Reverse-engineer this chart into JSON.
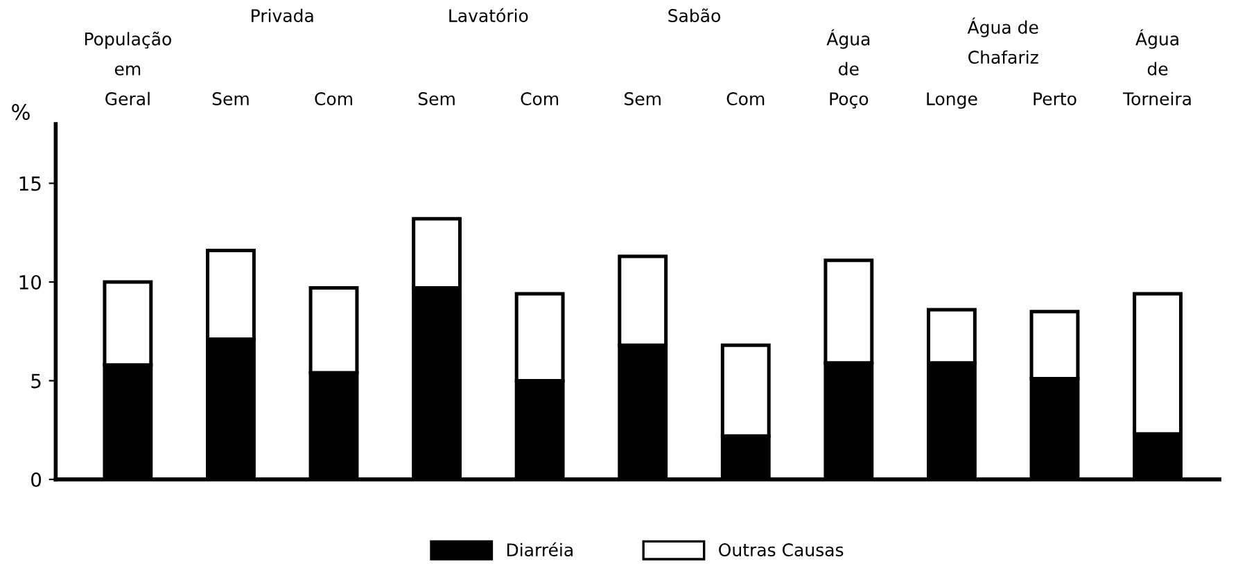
{
  "chart_data": {
    "type": "bar",
    "stacked": true,
    "ylabel": "%",
    "categories": [
      "População\nem\nGeral",
      "Sem",
      "Com",
      "Sem",
      "Com",
      "Sem",
      "Com",
      "Água\nde\nPoço",
      "Longe",
      "Perto",
      "Água\nde\nTorneira"
    ],
    "annotations": [
      "Privada",
      "Lavatório",
      "Sabão",
      "Água de\nChafariz"
    ],
    "series": [
      {
        "name": "Diarréia",
        "color": "#000000",
        "values": [
          5.8,
          7.1,
          5.4,
          9.7,
          5.0,
          6.8,
          2.2,
          5.9,
          5.9,
          5.1,
          2.3
        ]
      },
      {
        "name": "Outras Causas",
        "color": "#ffffff",
        "values": [
          4.2,
          4.5,
          4.3,
          3.5,
          4.4,
          4.5,
          4.6,
          5.2,
          2.7,
          3.4,
          7.1
        ]
      }
    ],
    "ylim": [
      0,
      18
    ],
    "yticks": [
      0,
      5,
      10,
      15
    ],
    "grid": false,
    "legend": "bottom"
  }
}
